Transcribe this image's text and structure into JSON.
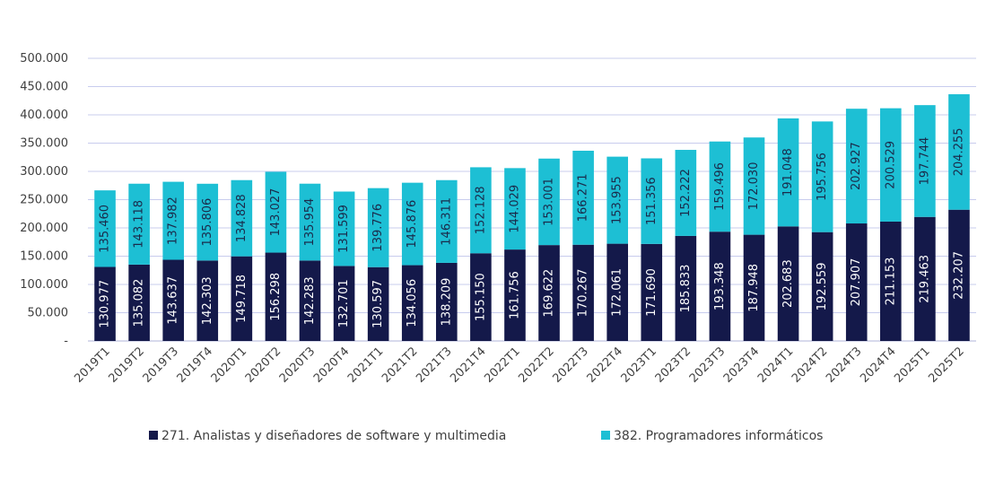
{
  "chart_data": {
    "type": "bar",
    "stacked": true,
    "categories": [
      "2019T1",
      "2019T2",
      "2019T3",
      "2019T4",
      "2020T1",
      "2020T2",
      "2020T3",
      "2020T4",
      "2021T1",
      "2021T2",
      "2021T3",
      "2021T4",
      "2022T1",
      "2022T2",
      "2022T3",
      "2022T4",
      "2023T1",
      "2023T2",
      "2023T3",
      "2023T4",
      "2024T1",
      "2024T2",
      "2024T3",
      "2024T4",
      "2025T1",
      "2025T2"
    ],
    "series": [
      {
        "name": "271. Analistas y diseñadores de software y multimedia",
        "color": "#14194a",
        "values": [
          130977,
          135082,
          143637,
          142303,
          149718,
          156298,
          142283,
          132701,
          130597,
          134056,
          138209,
          155150,
          161756,
          169622,
          170267,
          172061,
          171690,
          185833,
          193348,
          187948,
          202683,
          192559,
          207907,
          211153,
          219463,
          232207
        ],
        "labels": [
          "130.977",
          "135.082",
          "143.637",
          "142.303",
          "149.718",
          "156.298",
          "142.283",
          "132.701",
          "130.597",
          "134.056",
          "138.209",
          "155.150",
          "161.756",
          "169.622",
          "170.267",
          "172.061",
          "171.690",
          "185.833",
          "193.348",
          "187.948",
          "202.683",
          "192.559",
          "207.907",
          "211.153",
          "219.463",
          "232.207"
        ]
      },
      {
        "name": "382. Programadores informáticos",
        "color": "#1dbfd4",
        "values": [
          135460,
          143118,
          137982,
          135806,
          134828,
          143027,
          135954,
          131599,
          139776,
          145876,
          146311,
          152128,
          144029,
          153001,
          166271,
          153955,
          151356,
          152222,
          159496,
          172030,
          191048,
          195756,
          202927,
          200529,
          197744,
          204255
        ],
        "labels": [
          "135.460",
          "143.118",
          "137.982",
          "135.806",
          "134.828",
          "143.027",
          "135.954",
          "131.599",
          "139.776",
          "145.876",
          "146.311",
          "152.128",
          "144.029",
          "153.001",
          "166.271",
          "153.955",
          "151.356",
          "152.222",
          "159.496",
          "172.030",
          "191.048",
          "195.756",
          "202.927",
          "200.529",
          "197.744",
          "204.255"
        ]
      }
    ],
    "ylim": [
      0,
      500000
    ],
    "yticks": [
      0,
      50000,
      100000,
      150000,
      200000,
      250000,
      300000,
      350000,
      400000,
      450000,
      500000
    ],
    "ytick_labels": [
      "-",
      "50.000",
      "100.000",
      "150.000",
      "200.000",
      "250.000",
      "300.000",
      "350.000",
      "400.000",
      "450.000",
      "500.000"
    ],
    "grid": true,
    "legend_position": "bottom",
    "colors": {
      "grid": "#c8ccee",
      "axis": "#b0b4d8",
      "tick_text": "#404040"
    }
  }
}
